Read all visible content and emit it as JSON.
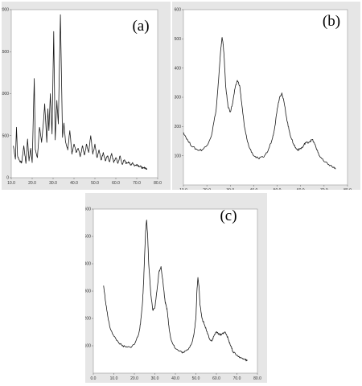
{
  "chart_data": [
    {
      "type": "line",
      "panel_label": "(a)",
      "xlim": [
        10,
        80
      ],
      "ylim": [
        0,
        2000
      ],
      "xticks": [
        "10.0",
        "20.0",
        "30.0",
        "40.0",
        "50.0",
        "60.0",
        "70.0",
        "80.0"
      ],
      "yticks": [
        "0",
        "500",
        "1000",
        "1500",
        "2000"
      ],
      "grid": false,
      "series": [
        {
          "x": [
            11,
            12,
            12.5,
            13,
            14,
            15,
            16,
            17,
            17.8,
            18.5,
            19.3,
            20,
            21,
            21.5,
            22.5,
            23.5,
            24.5,
            25.5,
            26,
            27,
            27.5,
            28,
            28.7,
            29.5,
            30.3,
            31,
            31.8,
            32.5,
            33.5,
            34.5,
            35.2,
            36,
            37,
            38,
            39,
            40,
            41,
            42,
            43,
            44,
            45,
            46,
            47,
            48,
            49,
            50,
            51,
            52,
            53,
            54,
            55,
            56,
            57,
            58,
            59,
            60,
            61,
            62,
            63,
            64,
            65,
            66,
            67,
            68,
            69,
            70,
            71,
            72,
            73,
            74,
            75
          ],
          "y": [
            380,
            220,
            600,
            260,
            200,
            180,
            380,
            170,
            460,
            200,
            350,
            180,
            1180,
            330,
            240,
            600,
            420,
            700,
            880,
            420,
            820,
            560,
            1000,
            520,
            1740,
            450,
            920,
            640,
            1940,
            480,
            650,
            420,
            330,
            560,
            280,
            400,
            300,
            350,
            250,
            380,
            270,
            400,
            300,
            500,
            280,
            400,
            240,
            330,
            210,
            300,
            200,
            260,
            190,
            290,
            180,
            240,
            170,
            260,
            160,
            210,
            170,
            190,
            150,
            180,
            140,
            160,
            140,
            130,
            110,
            120,
            100
          ]
        }
      ]
    },
    {
      "type": "line",
      "panel_label": "(b)",
      "xlim": [
        10,
        80
      ],
      "ylim": [
        0,
        600
      ],
      "xticks": [
        "10.0",
        "20.0",
        "30.0",
        "40.0",
        "50.0",
        "60.0",
        "70.0",
        "80.0"
      ],
      "yticks": [
        "100",
        "200",
        "300",
        "400",
        "500",
        "600"
      ],
      "grid": false,
      "series": [
        {
          "x": [
            10,
            12,
            14,
            16,
            18,
            20,
            22,
            24,
            25,
            26,
            26.5,
            27,
            27.5,
            28,
            29,
            30,
            31,
            32,
            33,
            34,
            35,
            36,
            37,
            38,
            40,
            42,
            44,
            46,
            48,
            49,
            50,
            51,
            52,
            53,
            54,
            55,
            56,
            57,
            58,
            59,
            60,
            61,
            62,
            63,
            64,
            65,
            66,
            67,
            68,
            70,
            72,
            74,
            75
          ],
          "y": [
            180,
            150,
            130,
            120,
            120,
            135,
            170,
            260,
            360,
            470,
            505,
            480,
            420,
            340,
            270,
            250,
            280,
            330,
            358,
            340,
            270,
            200,
            160,
            130,
            100,
            90,
            95,
            115,
            160,
            200,
            260,
            300,
            315,
            280,
            230,
            190,
            160,
            140,
            125,
            120,
            125,
            130,
            145,
            145,
            150,
            155,
            140,
            120,
            100,
            80,
            70,
            60,
            55
          ]
        }
      ]
    },
    {
      "type": "line",
      "panel_label": "(c)",
      "xlim": [
        0,
        80
      ],
      "ylim": [
        0,
        600
      ],
      "xticks": [
        "0.0",
        "10.0",
        "20.0",
        "30.0",
        "40.0",
        "50.0",
        "60.0",
        "70.0",
        "80.0"
      ],
      "yticks": [
        "100",
        "200",
        "300",
        "400",
        "500",
        "600"
      ],
      "grid": false,
      "series": [
        {
          "x": [
            5,
            6,
            7,
            8,
            10,
            12,
            14,
            16,
            18,
            20,
            22,
            23,
            24,
            24.5,
            25,
            25.5,
            26,
            26.5,
            27,
            28,
            29,
            30,
            31,
            32,
            33,
            34,
            35,
            35.5,
            36,
            37,
            38,
            40,
            42,
            44,
            46,
            48,
            49,
            50,
            50.5,
            51,
            51.5,
            52,
            53,
            54,
            55,
            56,
            57,
            58,
            59,
            60,
            61,
            62,
            63,
            64,
            65,
            66,
            67,
            68,
            70,
            72,
            74,
            75
          ],
          "y": [
            320,
            260,
            210,
            170,
            135,
            115,
            100,
            95,
            95,
            105,
            140,
            180,
            260,
            330,
            430,
            520,
            560,
            500,
            400,
            290,
            230,
            240,
            300,
            370,
            390,
            330,
            260,
            250,
            230,
            160,
            120,
            90,
            80,
            75,
            85,
            110,
            140,
            200,
            300,
            350,
            320,
            250,
            200,
            180,
            160,
            140,
            120,
            120,
            140,
            150,
            145,
            140,
            145,
            150,
            140,
            120,
            100,
            80,
            65,
            55,
            50,
            45
          ]
        }
      ]
    }
  ]
}
